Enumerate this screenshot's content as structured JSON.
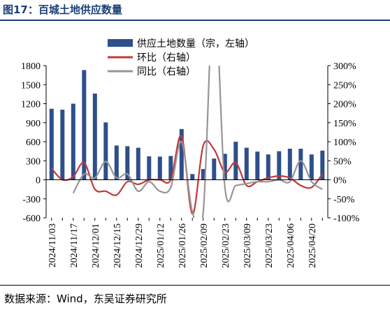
{
  "header": {
    "title": "图17：百城土地供应数量"
  },
  "footer": {
    "source": "数据来源：Wind，东吴证券研究所"
  },
  "colors": {
    "bar": "#2e4f8c",
    "mom": "#c0393b",
    "yoy": "#969696",
    "title": "#1a3f78"
  },
  "chart_data": {
    "type": "bar",
    "categories": [
      "2024/11/03",
      "2024/11/10",
      "2024/11/17",
      "2024/11/24",
      "2024/12/01",
      "2024/12/08",
      "2024/12/15",
      "2024/12/22",
      "2024/12/29",
      "2025/01/05",
      "2025/01/12",
      "2025/01/19",
      "2025/01/26",
      "2025/02/02",
      "2025/02/09",
      "2025/02/16",
      "2025/02/23",
      "2025/03/02",
      "2025/03/09",
      "2025/03/16",
      "2025/03/23",
      "2025/03/30",
      "2025/04/06",
      "2025/04/13",
      "2025/04/20",
      "2025/04/27"
    ],
    "x_tick_labels": [
      "2024/11/03",
      "2024/11/17",
      "2024/12/01",
      "2024/12/15",
      "2024/12/29",
      "2025/01/12",
      "2025/01/26",
      "2025/02/09",
      "2025/02/23",
      "2025/03/09",
      "2025/03/23",
      "2025/04/06",
      "2025/04/20"
    ],
    "y_left": {
      "lim": [
        -600,
        1800
      ],
      "ticks": [
        "1800",
        "1500",
        "1200",
        "900",
        "600",
        "300",
        "0",
        "-300",
        "-600"
      ]
    },
    "y_right": {
      "lim": [
        -100,
        300
      ],
      "ticks": [
        "300%",
        "250%",
        "200%",
        "150%",
        "100%",
        "50%",
        "0%",
        "-50%",
        "-100%"
      ]
    },
    "series": [
      {
        "name": "供应土地数量（宗，左轴）",
        "kind": "bar",
        "axis": "left",
        "values": [
          1120,
          1105,
          1200,
          1730,
          1360,
          905,
          540,
          530,
          505,
          370,
          365,
          375,
          800,
          90,
          170,
          335,
          410,
          600,
          505,
          445,
          400,
          450,
          490,
          490,
          400,
          460
        ]
      },
      {
        "name": "环比（右轴）",
        "kind": "line",
        "axis": "right",
        "values": [
          30,
          0,
          8,
          45,
          -25,
          -30,
          -40,
          -5,
          -12,
          0,
          0,
          0,
          115,
          -90,
          90,
          80,
          20,
          45,
          -15,
          -5,
          5,
          10,
          5,
          -15,
          -20,
          15
        ]
      },
      {
        "name": "同比（右轴）",
        "kind": "line",
        "axis": "right",
        "values": [
          null,
          null,
          -35,
          15,
          5,
          48,
          5,
          15,
          -30,
          -5,
          -30,
          -20,
          100,
          -85,
          -85,
          500,
          -20,
          -15,
          -10,
          -5,
          -5,
          0,
          -5,
          50,
          -5,
          -25
        ]
      }
    ],
    "legend_position": "top-right",
    "grid": false
  }
}
